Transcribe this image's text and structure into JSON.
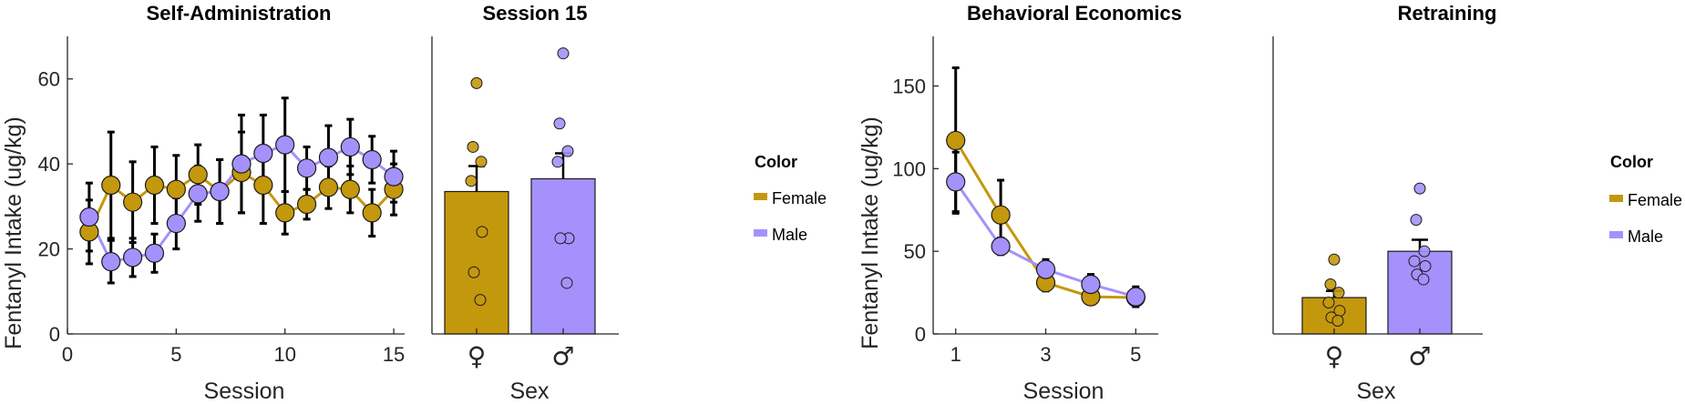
{
  "colors": {
    "female": "#c4980c",
    "male": "#a591fb",
    "axis": "#262626"
  },
  "legend": {
    "title": "Color",
    "entries": [
      "Female",
      "Male"
    ]
  },
  "chart_data": [
    {
      "id": "sa",
      "type": "line",
      "title": "Self-Administration",
      "xlabel": "Session",
      "ylabel": "Fentanyl Intake (ug/kg)",
      "xlim": [
        0,
        15.5
      ],
      "ylim": [
        0,
        70
      ],
      "xticks": [
        0,
        5,
        10,
        15
      ],
      "yticks": [
        0,
        20,
        40,
        60
      ],
      "x": [
        1,
        2,
        3,
        4,
        5,
        6,
        7,
        8,
        9,
        10,
        11,
        12,
        13,
        14,
        15
      ],
      "series": [
        {
          "name": "Female",
          "color": "#c4980c",
          "values": [
            24,
            35,
            31,
            35,
            34,
            37.5,
            33.5,
            38,
            35,
            28.5,
            30.5,
            34.5,
            34,
            28.5,
            34
          ],
          "error": [
            7.5,
            12.5,
            9.5,
            9,
            8,
            7,
            7.5,
            9.5,
            9,
            5,
            3.5,
            5,
            5.5,
            5.5,
            6
          ]
        },
        {
          "name": "Male",
          "color": "#a591fb",
          "values": [
            27.5,
            17,
            18,
            19,
            26,
            33,
            33.5,
            40,
            42.5,
            44.5,
            39,
            41.5,
            44,
            41,
            37
          ],
          "error": [
            8,
            5,
            4.5,
            4.5,
            6,
            6.5,
            7.5,
            11.5,
            9,
            11,
            5,
            7.5,
            6.5,
            5.5,
            6
          ]
        }
      ]
    },
    {
      "id": "s15",
      "type": "bar",
      "title": "Session 15",
      "xlabel": "Sex",
      "ylim": [
        0,
        70
      ],
      "categories": [
        "♀",
        "♂"
      ],
      "values": [
        33.5,
        36.5
      ],
      "error": [
        6,
        6
      ],
      "colors": [
        "#c4980c",
        "#a591fb"
      ],
      "points": [
        [
          59,
          44,
          40.5,
          36,
          24,
          14.5,
          8
        ],
        [
          66,
          49.5,
          43,
          40.5,
          22.5,
          22.5,
          12
        ]
      ]
    },
    {
      "id": "be",
      "type": "line",
      "title": "Behavioral Economics",
      "xlabel": "Session",
      "ylabel": "Fentanyl Intake (ug/kg)",
      "xlim": [
        0.5,
        5.5
      ],
      "ylim": [
        0,
        180
      ],
      "xticks": [
        1,
        3,
        5
      ],
      "yticks": [
        0,
        50,
        100,
        150
      ],
      "x": [
        1,
        2,
        3,
        4,
        5
      ],
      "series": [
        {
          "name": "Female",
          "color": "#c4980c",
          "values": [
            117,
            72,
            31,
            22.5,
            22
          ],
          "error": [
            44,
            21,
            5,
            4,
            3
          ]
        },
        {
          "name": "Male",
          "color": "#a591fb",
          "values": [
            92,
            53,
            39,
            30,
            22.5
          ],
          "error": [
            18,
            5,
            6,
            6,
            6
          ]
        }
      ]
    },
    {
      "id": "rt",
      "type": "bar",
      "title": "Retraining",
      "xlabel": "Sex",
      "ylim": [
        0,
        180
      ],
      "categories": [
        "♀",
        "♂"
      ],
      "values": [
        22,
        50
      ],
      "error": [
        4,
        7
      ],
      "colors": [
        "#c4980c",
        "#a591fb"
      ],
      "points": [
        [
          45,
          30,
          25,
          19,
          14,
          10,
          8
        ],
        [
          88,
          69,
          50,
          44,
          41,
          36,
          33
        ]
      ]
    }
  ]
}
